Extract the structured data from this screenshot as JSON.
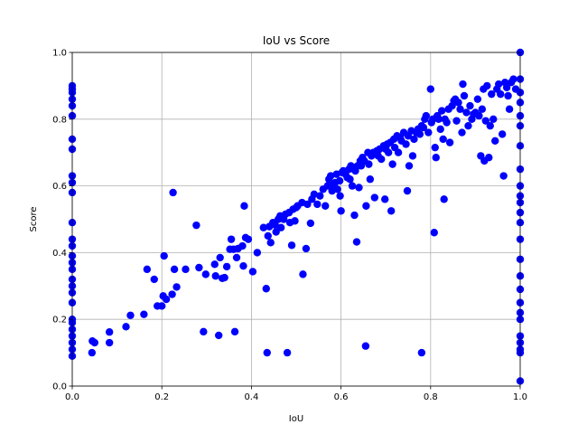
{
  "chart_data": {
    "type": "scatter",
    "title": "IoU vs Score",
    "xlabel": "IoU",
    "ylabel": "Score",
    "xlim": [
      0.0,
      1.0
    ],
    "ylim": [
      0.0,
      1.0
    ],
    "xticks": [
      "0.0",
      "0.2",
      "0.4",
      "0.6",
      "0.8",
      "1.0"
    ],
    "yticks": [
      "0.0",
      "0.2",
      "0.4",
      "0.6",
      "0.8",
      "1.0"
    ],
    "grid": true,
    "marker_color": "#0000ff",
    "series": [
      {
        "points": [
          [
            0.0,
            0.09
          ],
          [
            0.0,
            0.11
          ],
          [
            0.0,
            0.13
          ],
          [
            0.0,
            0.15
          ],
          [
            0.0,
            0.17
          ],
          [
            0.0,
            0.19
          ],
          [
            0.0,
            0.2
          ],
          [
            0.0,
            0.25
          ],
          [
            0.0,
            0.28
          ],
          [
            0.0,
            0.3
          ],
          [
            0.0,
            0.32
          ],
          [
            0.0,
            0.35
          ],
          [
            0.0,
            0.37
          ],
          [
            0.0,
            0.39
          ],
          [
            0.0,
            0.42
          ],
          [
            0.0,
            0.44
          ],
          [
            0.0,
            0.49
          ],
          [
            0.0,
            0.58
          ],
          [
            0.0,
            0.61
          ],
          [
            0.0,
            0.63
          ],
          [
            0.0,
            0.71
          ],
          [
            0.0,
            0.74
          ],
          [
            0.0,
            0.81
          ],
          [
            0.0,
            0.84
          ],
          [
            0.0,
            0.86
          ],
          [
            0.0,
            0.88
          ],
          [
            0.0,
            0.89
          ],
          [
            0.0,
            0.9
          ],
          [
            0.044,
            0.1
          ],
          [
            0.045,
            0.135
          ],
          [
            0.05,
            0.13
          ],
          [
            0.083,
            0.13
          ],
          [
            0.083,
            0.162
          ],
          [
            0.12,
            0.178
          ],
          [
            0.13,
            0.212
          ],
          [
            0.16,
            0.215
          ],
          [
            0.167,
            0.35
          ],
          [
            0.183,
            0.32
          ],
          [
            0.19,
            0.24
          ],
          [
            0.2,
            0.24
          ],
          [
            0.203,
            0.27
          ],
          [
            0.205,
            0.39
          ],
          [
            0.21,
            0.26
          ],
          [
            0.223,
            0.275
          ],
          [
            0.225,
            0.58
          ],
          [
            0.228,
            0.35
          ],
          [
            0.233,
            0.297
          ],
          [
            0.253,
            0.35
          ],
          [
            0.277,
            0.482
          ],
          [
            0.283,
            0.355
          ],
          [
            0.293,
            0.163
          ],
          [
            0.298,
            0.335
          ],
          [
            0.318,
            0.365
          ],
          [
            0.32,
            0.33
          ],
          [
            0.327,
            0.152
          ],
          [
            0.33,
            0.385
          ],
          [
            0.335,
            0.323
          ],
          [
            0.34,
            0.325
          ],
          [
            0.345,
            0.358
          ],
          [
            0.352,
            0.41
          ],
          [
            0.355,
            0.44
          ],
          [
            0.36,
            0.41
          ],
          [
            0.363,
            0.163
          ],
          [
            0.367,
            0.385
          ],
          [
            0.37,
            0.412
          ],
          [
            0.38,
            0.42
          ],
          [
            0.382,
            0.36
          ],
          [
            0.384,
            0.54
          ],
          [
            0.387,
            0.445
          ],
          [
            0.393,
            0.44
          ],
          [
            0.403,
            0.343
          ],
          [
            0.413,
            0.4
          ],
          [
            0.427,
            0.475
          ],
          [
            0.433,
            0.292
          ],
          [
            0.435,
            0.1
          ],
          [
            0.437,
            0.45
          ],
          [
            0.44,
            0.478
          ],
          [
            0.443,
            0.43
          ],
          [
            0.448,
            0.49
          ],
          [
            0.453,
            0.483
          ],
          [
            0.455,
            0.462
          ],
          [
            0.46,
            0.5
          ],
          [
            0.464,
            0.51
          ],
          [
            0.466,
            0.475
          ],
          [
            0.472,
            0.5
          ],
          [
            0.476,
            0.515
          ],
          [
            0.48,
            0.1
          ],
          [
            0.484,
            0.52
          ],
          [
            0.486,
            0.49
          ],
          [
            0.49,
            0.422
          ],
          [
            0.493,
            0.53
          ],
          [
            0.497,
            0.495
          ],
          [
            0.5,
            0.535
          ],
          [
            0.503,
            0.54
          ],
          [
            0.513,
            0.55
          ],
          [
            0.515,
            0.335
          ],
          [
            0.522,
            0.412
          ],
          [
            0.525,
            0.545
          ],
          [
            0.532,
            0.488
          ],
          [
            0.535,
            0.56
          ],
          [
            0.54,
            0.575
          ],
          [
            0.547,
            0.545
          ],
          [
            0.553,
            0.57
          ],
          [
            0.56,
            0.59
          ],
          [
            0.565,
            0.54
          ],
          [
            0.57,
            0.6
          ],
          [
            0.573,
            0.62
          ],
          [
            0.577,
            0.63
          ],
          [
            0.58,
            0.585
          ],
          [
            0.583,
            0.605
          ],
          [
            0.587,
            0.61
          ],
          [
            0.59,
            0.635
          ],
          [
            0.592,
            0.59
          ],
          [
            0.597,
            0.615
          ],
          [
            0.598,
            0.57
          ],
          [
            0.6,
            0.525
          ],
          [
            0.602,
            0.64
          ],
          [
            0.605,
            0.645
          ],
          [
            0.61,
            0.635
          ],
          [
            0.614,
            0.625
          ],
          [
            0.618,
            0.65
          ],
          [
            0.62,
            0.62
          ],
          [
            0.622,
            0.66
          ],
          [
            0.625,
            0.6
          ],
          [
            0.628,
            0.655
          ],
          [
            0.63,
            0.512
          ],
          [
            0.632,
            0.645
          ],
          [
            0.635,
            0.432
          ],
          [
            0.637,
            0.66
          ],
          [
            0.64,
            0.595
          ],
          [
            0.643,
            0.675
          ],
          [
            0.645,
            0.66
          ],
          [
            0.648,
            0.685
          ],
          [
            0.652,
            0.675
          ],
          [
            0.655,
            0.12
          ],
          [
            0.656,
            0.54
          ],
          [
            0.66,
            0.7
          ],
          [
            0.662,
            0.665
          ],
          [
            0.665,
            0.62
          ],
          [
            0.668,
            0.69
          ],
          [
            0.672,
            0.7
          ],
          [
            0.675,
            0.565
          ],
          [
            0.68,
            0.705
          ],
          [
            0.683,
            0.69
          ],
          [
            0.686,
            0.71
          ],
          [
            0.69,
            0.68
          ],
          [
            0.695,
            0.72
          ],
          [
            0.698,
            0.56
          ],
          [
            0.7,
            0.71
          ],
          [
            0.703,
            0.725
          ],
          [
            0.706,
            0.7
          ],
          [
            0.71,
            0.73
          ],
          [
            0.712,
            0.525
          ],
          [
            0.715,
            0.665
          ],
          [
            0.718,
            0.74
          ],
          [
            0.72,
            0.715
          ],
          [
            0.725,
            0.75
          ],
          [
            0.728,
            0.7
          ],
          [
            0.732,
            0.745
          ],
          [
            0.735,
            0.735
          ],
          [
            0.74,
            0.76
          ],
          [
            0.745,
            0.725
          ],
          [
            0.748,
            0.585
          ],
          [
            0.75,
            0.75
          ],
          [
            0.752,
            0.66
          ],
          [
            0.757,
            0.765
          ],
          [
            0.76,
            0.69
          ],
          [
            0.763,
            0.74
          ],
          [
            0.768,
            0.76
          ],
          [
            0.772,
            0.77
          ],
          [
            0.776,
            0.755
          ],
          [
            0.78,
            0.1
          ],
          [
            0.78,
            0.78
          ],
          [
            0.784,
            0.775
          ],
          [
            0.787,
            0.8
          ],
          [
            0.79,
            0.81
          ],
          [
            0.795,
            0.76
          ],
          [
            0.8,
            0.89
          ],
          [
            0.802,
            0.79
          ],
          [
            0.805,
            0.8
          ],
          [
            0.808,
            0.46
          ],
          [
            0.81,
            0.715
          ],
          [
            0.812,
            0.685
          ],
          [
            0.815,
            0.81
          ],
          [
            0.818,
            0.8
          ],
          [
            0.822,
            0.77
          ],
          [
            0.825,
            0.825
          ],
          [
            0.828,
            0.74
          ],
          [
            0.83,
            0.56
          ],
          [
            0.832,
            0.8
          ],
          [
            0.836,
            0.79
          ],
          [
            0.84,
            0.83
          ],
          [
            0.843,
            0.73
          ],
          [
            0.848,
            0.84
          ],
          [
            0.852,
            0.855
          ],
          [
            0.855,
            0.86
          ],
          [
            0.858,
            0.795
          ],
          [
            0.862,
            0.85
          ],
          [
            0.866,
            0.83
          ],
          [
            0.87,
            0.76
          ],
          [
            0.872,
            0.905
          ],
          [
            0.875,
            0.87
          ],
          [
            0.88,
            0.82
          ],
          [
            0.884,
            0.78
          ],
          [
            0.888,
            0.84
          ],
          [
            0.892,
            0.8
          ],
          [
            0.896,
            0.815
          ],
          [
            0.9,
            0.82
          ],
          [
            0.905,
            0.86
          ],
          [
            0.908,
            0.81
          ],
          [
            0.912,
            0.69
          ],
          [
            0.915,
            0.83
          ],
          [
            0.918,
            0.89
          ],
          [
            0.92,
            0.675
          ],
          [
            0.923,
            0.795
          ],
          [
            0.926,
            0.9
          ],
          [
            0.93,
            0.685
          ],
          [
            0.933,
            0.78
          ],
          [
            0.936,
            0.875
          ],
          [
            0.94,
            0.8
          ],
          [
            0.944,
            0.735
          ],
          [
            0.948,
            0.89
          ],
          [
            0.952,
            0.905
          ],
          [
            0.956,
            0.875
          ],
          [
            0.96,
            0.755
          ],
          [
            0.963,
            0.63
          ],
          [
            0.966,
            0.91
          ],
          [
            0.97,
            0.895
          ],
          [
            0.973,
            0.87
          ],
          [
            0.976,
            0.83
          ],
          [
            0.98,
            0.91
          ],
          [
            0.985,
            0.92
          ],
          [
            0.99,
            0.89
          ],
          [
            1.0,
            0.015
          ],
          [
            1.0,
            0.1
          ],
          [
            1.0,
            0.11
          ],
          [
            1.0,
            0.13
          ],
          [
            1.0,
            0.15
          ],
          [
            1.0,
            0.2
          ],
          [
            1.0,
            0.22
          ],
          [
            1.0,
            0.25
          ],
          [
            1.0,
            0.29
          ],
          [
            1.0,
            0.33
          ],
          [
            1.0,
            0.38
          ],
          [
            1.0,
            0.44
          ],
          [
            1.0,
            0.49
          ],
          [
            1.0,
            0.52
          ],
          [
            1.0,
            0.55
          ],
          [
            1.0,
            0.57
          ],
          [
            1.0,
            0.6
          ],
          [
            1.0,
            0.65
          ],
          [
            1.0,
            0.72
          ],
          [
            1.0,
            0.78
          ],
          [
            1.0,
            0.81
          ],
          [
            1.0,
            0.85
          ],
          [
            1.0,
            0.88
          ],
          [
            1.0,
            0.92
          ],
          [
            1.0,
            1.0
          ]
        ]
      }
    ]
  }
}
